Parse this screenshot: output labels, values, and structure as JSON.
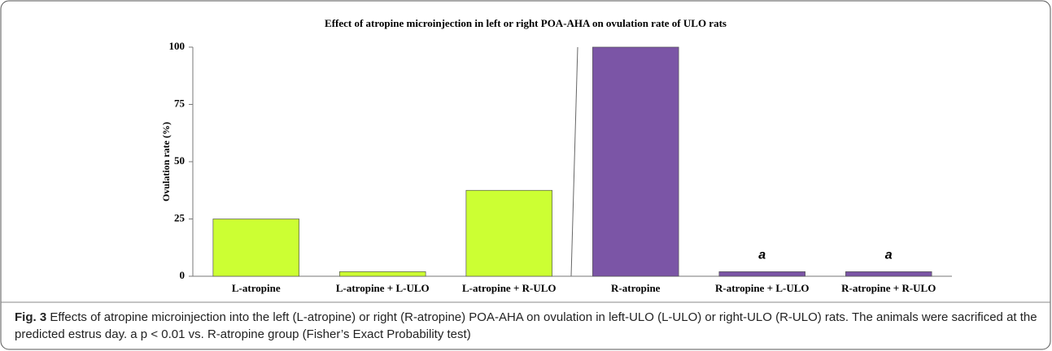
{
  "chart_data": {
    "type": "bar",
    "title": "Effect of atropine microinjection in left or right  POA-AHA on ovulation rate of ULO rats",
    "y_label": "Ovulation rate  (%)",
    "categories": [
      "L-atropine",
      "L-atropine + L-ULO",
      "L-atropine + R-ULO",
      "R-atropine",
      "R-atropine + L-ULO",
      "R-atropine + R-ULO"
    ],
    "values": [
      25,
      2,
      37.5,
      100,
      2,
      2
    ],
    "colors": [
      "#ccff33",
      "#ccff33",
      "#ccff33",
      "#7b55a6",
      "#7b55a6",
      "#7b55a6"
    ],
    "ylim": [
      0,
      100
    ],
    "yticks": [
      0,
      25,
      50,
      75,
      100
    ],
    "grid": false,
    "annotations": [
      {
        "text": "a",
        "x": "R-atropine + L-ULO"
      },
      {
        "text": "a",
        "x": "R-atropine + R-ULO"
      }
    ]
  },
  "caption": {
    "label": "Fig. 3",
    "text": "Effects of atropine microinjection into the left (L-atropine) or right (R-atropine) POA-AHA on ovulation in left-ULO (L-ULO) or right-ULO (R-ULO) rats. The animals were sacrificed at the predicted estrus day. a p < 0.01 vs. R-atropine group (Fisher’s Exact Probability test)"
  }
}
